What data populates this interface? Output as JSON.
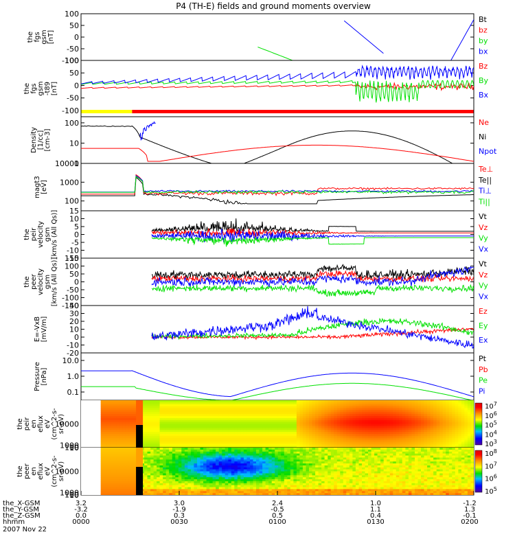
{
  "figure": {
    "title": "P4 (TH-E) fields and ground moments overview",
    "date": "2007 Nov 22"
  },
  "colors": {
    "black": "#000000",
    "red": "#ff0000",
    "green": "#00e000",
    "blue": "#0000ff",
    "yellow": "#ffff00",
    "orange": "#ffa000"
  },
  "chart_data": [
    {
      "id": "fgs_gsm",
      "type": "line",
      "ylabel": [
        "the",
        "fgs",
        "gsm",
        "[nT]"
      ],
      "ylim": [
        -100,
        100
      ],
      "yticks": [
        "100",
        "50",
        "0",
        "-50",
        "-100"
      ],
      "legend": [
        {
          "name": "Bt",
          "color": "#000000"
        },
        {
          "name": "bz",
          "color": "#ff0000"
        },
        {
          "name": "by",
          "color": "#00e000"
        },
        {
          "name": "bx",
          "color": "#0000ff"
        }
      ]
    },
    {
      "id": "fgs_gsm_t89",
      "type": "line",
      "ylabel": [
        "the",
        "fgs",
        "gsm",
        "-t89",
        "[nT]"
      ],
      "ylim": [
        -125,
        100
      ],
      "yticks": [
        "100",
        "50",
        "0",
        "-50",
        "-100"
      ],
      "legend": [
        {
          "name": "Bz",
          "color": "#ff0000"
        },
        {
          "name": "By",
          "color": "#00e000"
        },
        {
          "name": "Bx",
          "color": "#0000ff"
        }
      ],
      "mode_bar": [
        {
          "from": 0.0,
          "to": 0.13,
          "color": "#ffff00"
        },
        {
          "from": 0.13,
          "to": 1.0,
          "color": "#ff0000"
        }
      ]
    },
    {
      "id": "density",
      "type": "line",
      "scale": "log",
      "ylabel": [
        "Density",
        "[1/cc]",
        "[cm-3]"
      ],
      "ylim": [
        1,
        200
      ],
      "yticks": [
        "100",
        "10",
        "1"
      ],
      "legend": [
        {
          "name": "Ne",
          "color": "#ff0000"
        },
        {
          "name": "Ni",
          "color": "#000000"
        },
        {
          "name": "Npot",
          "color": "#0000ff"
        }
      ]
    },
    {
      "id": "temperature",
      "type": "line",
      "scale": "log",
      "ylabel": [
        "magt3",
        "[eV]"
      ],
      "ylim": [
        30,
        10000
      ],
      "yticks": [
        "10000",
        "1000",
        "100"
      ],
      "legend": [
        {
          "name": "Te⊥",
          "color": "#ff0000"
        },
        {
          "name": "Te||",
          "color": "#000000"
        },
        {
          "name": "Ti⊥",
          "color": "#0000ff"
        },
        {
          "name": "Ti||",
          "color": "#00e000"
        }
      ]
    },
    {
      "id": "peir_velocity",
      "type": "line",
      "ylabel": [
        "the",
        "peir",
        "velocity",
        "gsm",
        "[km/s (All Qs)]"
      ],
      "ylim": [
        -15,
        15
      ],
      "yticks": [
        "15",
        "10",
        "5",
        "0",
        "-5",
        "-10",
        "-15"
      ],
      "legend": [
        {
          "name": "Vt",
          "color": "#000000"
        },
        {
          "name": "Vz",
          "color": "#ff0000"
        },
        {
          "name": "Vy",
          "color": "#00e000"
        },
        {
          "name": "Vx",
          "color": "#0000ff"
        }
      ]
    },
    {
      "id": "peer_velocity",
      "type": "line",
      "ylabel": [
        "the",
        "peer",
        "velocity",
        "gsm",
        "[km/s (All Qs)]"
      ],
      "ylim": [
        -150,
        150
      ],
      "yticks": [
        "150",
        "100",
        "50",
        "0",
        "-50",
        "-100",
        "-150"
      ],
      "legend": [
        {
          "name": "Vt",
          "color": "#000000"
        },
        {
          "name": "Vz",
          "color": "#ff0000"
        },
        {
          "name": "Vy",
          "color": "#00e000"
        },
        {
          "name": "Vx",
          "color": "#0000ff"
        }
      ]
    },
    {
      "id": "efield",
      "type": "line",
      "ylabel": [
        "E=-VxB",
        "[mV/m]"
      ],
      "ylim": [
        -20,
        40
      ],
      "yticks": [
        "40",
        "30",
        "20",
        "10",
        "0",
        "-10",
        "-20"
      ],
      "legend": [
        {
          "name": "Ez",
          "color": "#ff0000"
        },
        {
          "name": "Ey",
          "color": "#00e000"
        },
        {
          "name": "Ex",
          "color": "#0000ff"
        }
      ]
    },
    {
      "id": "pressure",
      "type": "line",
      "scale": "log",
      "ylabel": [
        "Pressure",
        "[nPa]"
      ],
      "ylim": [
        0.03,
        30
      ],
      "yticks": [
        "10.0",
        "1.0",
        "0.1"
      ],
      "legend": [
        {
          "name": "Pt",
          "color": "#000000"
        },
        {
          "name": "Pb",
          "color": "#ff0000"
        },
        {
          "name": "Pe",
          "color": "#00e000"
        },
        {
          "name": "Pi",
          "color": "#0000ff"
        }
      ]
    },
    {
      "id": "peir_spectrogram",
      "type": "heatmap",
      "ylabel": [
        "the",
        "peir",
        "en",
        "eflux",
        "eV",
        "(cm^2-s-",
        "sr-eV)"
      ],
      "ylim": [
        7,
        20000
      ],
      "yticks": [
        "10000",
        "1000",
        "100",
        "10"
      ],
      "colorbar_ticks": [
        "10^7",
        "10^6",
        "10^5",
        "10^4",
        "10^3"
      ]
    },
    {
      "id": "peer_spectrogram",
      "type": "heatmap",
      "ylabel": [
        "the",
        "peer",
        "en",
        "eflux",
        "eV",
        "(cm^2-s-",
        "sr-eV)"
      ],
      "ylim": [
        7,
        20000
      ],
      "yticks": [
        "10000",
        "1000",
        "100",
        "10"
      ],
      "colorbar_ticks": [
        "10^8",
        "10^7",
        "10^6",
        "10^5"
      ]
    }
  ],
  "xaxis": {
    "rows": [
      {
        "label": "the_X-GSM",
        "values": [
          "3.2",
          "3.0",
          "2.4",
          "1.0",
          "-1.2"
        ]
      },
      {
        "label": "the_Y-GSM",
        "values": [
          "-3.2",
          "-1.9",
          "-0.5",
          "1.1",
          "1.3"
        ]
      },
      {
        "label": "the_Z-GSM",
        "values": [
          "0.0",
          "0.3",
          "0.5",
          "0.4",
          "-0.1"
        ]
      },
      {
        "label": "hhmm",
        "values": [
          "0000",
          "0030",
          "0100",
          "0130",
          "0200"
        ]
      }
    ]
  }
}
